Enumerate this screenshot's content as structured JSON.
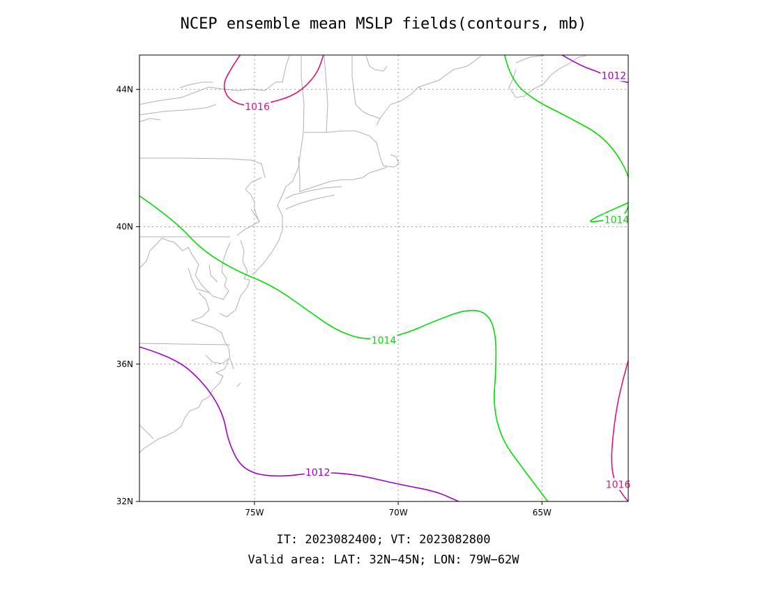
{
  "title": "NCEP ensemble mean MSLP fields(contours, mb)",
  "footer": {
    "times": "IT: 2023082400; VT: 2023082800",
    "area": "Valid area: LAT: 32N−45N; LON: 79W−62W"
  },
  "chart_data": {
    "type": "contour",
    "x_ticks": [
      {
        "lon": -75,
        "label": "75W"
      },
      {
        "lon": -70,
        "label": "70W"
      },
      {
        "lon": -65,
        "label": "65W"
      }
    ],
    "y_ticks": [
      {
        "lat": 44,
        "label": "44N"
      },
      {
        "lat": 40,
        "label": "40N"
      },
      {
        "lat": 36,
        "label": "36N"
      },
      {
        "lat": 32,
        "label": "32N"
      }
    ],
    "xlim": [
      -79,
      -62
    ],
    "ylim": [
      32,
      45
    ],
    "grid": true,
    "contours": [
      {
        "value": 1016,
        "label": "1016",
        "color": "#e0107a",
        "points": [
          [
            -75.5,
            45
          ],
          [
            -75.9,
            44.5
          ],
          [
            -76.1,
            44.1
          ],
          [
            -75.9,
            43.7
          ],
          [
            -75.3,
            43.5
          ],
          [
            -74.5,
            43.6
          ],
          [
            -73.7,
            43.8
          ],
          [
            -73.2,
            44.1
          ],
          [
            -72.8,
            44.5
          ],
          [
            -72.6,
            45
          ]
        ],
        "label_at": [
          -74.9,
          43.5
        ]
      },
      {
        "value": 1016,
        "label": "1016",
        "color": "#e0107a",
        "points": [
          [
            -62,
            36.1
          ],
          [
            -62.3,
            35.2
          ],
          [
            -62.5,
            34.2
          ],
          [
            -62.6,
            33.2
          ],
          [
            -62.5,
            32.6
          ],
          [
            -62.2,
            32.2
          ],
          [
            -62,
            32
          ]
        ],
        "label_at": [
          -62.35,
          32.5
        ]
      },
      {
        "value": 1014,
        "label": "1014",
        "color": "#00dd00",
        "points": [
          [
            -79,
            40.9
          ],
          [
            -77.8,
            40.2
          ],
          [
            -76.8,
            39.3
          ],
          [
            -75.6,
            38.7
          ],
          [
            -74.4,
            38.3
          ],
          [
            -73.2,
            37.6
          ],
          [
            -72.2,
            37.0
          ],
          [
            -71.2,
            36.7
          ],
          [
            -70.0,
            36.8
          ],
          [
            -68.6,
            37.3
          ],
          [
            -67.6,
            37.6
          ],
          [
            -66.9,
            37.5
          ],
          [
            -66.6,
            36.9
          ],
          [
            -66.6,
            35.8
          ],
          [
            -66.7,
            34.8
          ],
          [
            -66.4,
            33.8
          ],
          [
            -65.7,
            33.0
          ],
          [
            -64.8,
            32
          ]
        ],
        "label_at": [
          -70.5,
          36.7
        ]
      },
      {
        "value": 1014,
        "label": "1014",
        "color": "#00dd00",
        "points": [
          [
            -66.3,
            45
          ],
          [
            -66.1,
            44.3
          ],
          [
            -65.3,
            43.7
          ],
          [
            -64.1,
            43.2
          ],
          [
            -62.8,
            42.6
          ],
          [
            -62.0,
            41.6
          ],
          [
            -61.9,
            40.9
          ],
          [
            -62.1,
            40.3
          ],
          [
            -62.7,
            40.2
          ],
          [
            -63.6,
            40.1
          ],
          [
            -62,
            40.7
          ]
        ],
        "label_at": [
          -62.4,
          40.2
        ]
      },
      {
        "value": 1012,
        "label": "1012",
        "color": "#a000c8",
        "points": [
          [
            -79,
            36.5
          ],
          [
            -77.8,
            36.2
          ],
          [
            -76.8,
            35.5
          ],
          [
            -76.1,
            34.6
          ],
          [
            -75.9,
            33.7
          ],
          [
            -75.4,
            32.9
          ],
          [
            -74.3,
            32.7
          ],
          [
            -72.8,
            32.85
          ],
          [
            -71.5,
            32.8
          ],
          [
            -70,
            32.5
          ],
          [
            -68.7,
            32.3
          ],
          [
            -67.9,
            32
          ]
        ],
        "label_at": [
          -72.8,
          32.85
        ]
      },
      {
        "value": 1012,
        "label": "1012",
        "color": "#a000c8",
        "points": [
          [
            -64.3,
            45
          ],
          [
            -63.7,
            44.7
          ],
          [
            -63.0,
            44.5
          ],
          [
            -62.6,
            44.3
          ],
          [
            -62,
            44.2
          ]
        ],
        "label_at": [
          -62.5,
          44.4
        ]
      }
    ]
  }
}
